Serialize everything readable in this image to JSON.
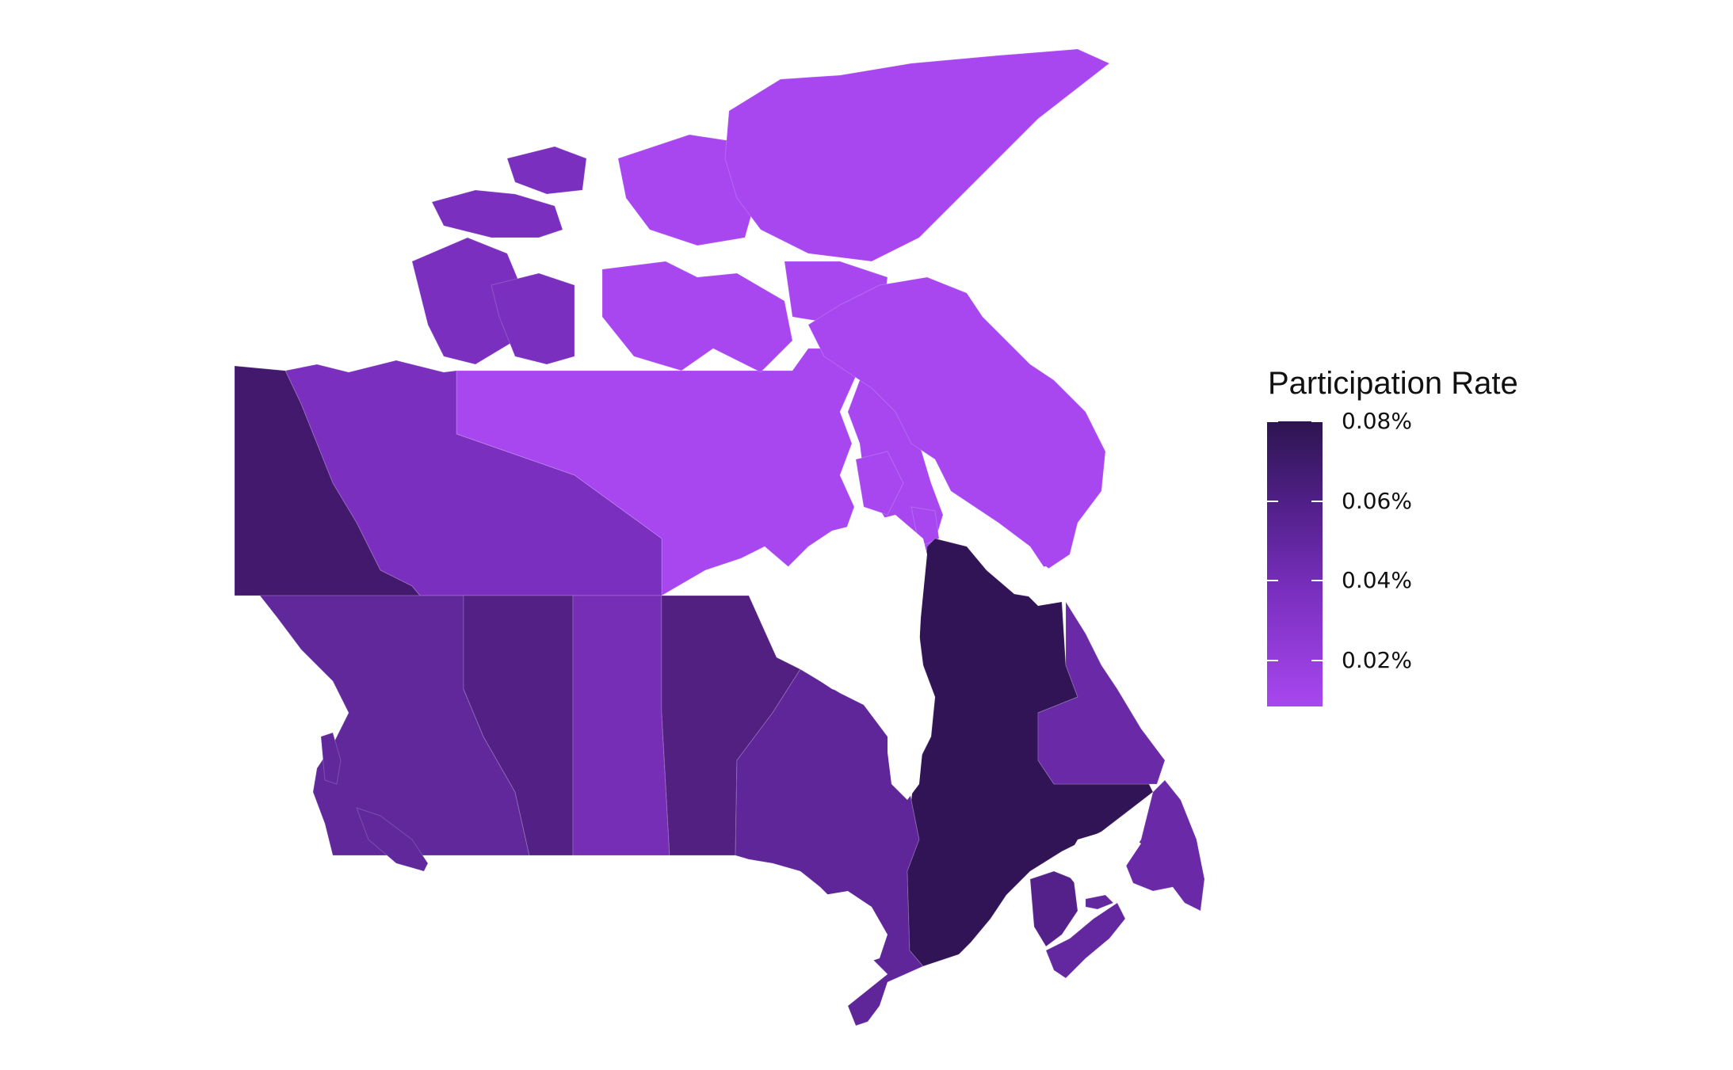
{
  "legend": {
    "title": "Participation Rate",
    "ticks": [
      {
        "label": "0.08%",
        "value": 0.08
      },
      {
        "label": "0.06%",
        "value": 0.06
      },
      {
        "label": "0.04%",
        "value": 0.04
      },
      {
        "label": "0.02%",
        "value": 0.02
      }
    ],
    "range": [
      0.0085,
      0.08
    ],
    "colors": {
      "low": "#a847f0",
      "high": "#2d1550"
    }
  },
  "regions": [
    {
      "name": "Nunavut",
      "value": 0.01,
      "color": "#a847f0"
    },
    {
      "name": "Northwest Territories",
      "value": 0.033,
      "color": "#7a2fbf"
    },
    {
      "name": "Yukon",
      "value": 0.068,
      "color": "#43196e"
    },
    {
      "name": "British Columbia",
      "value": 0.048,
      "color": "#61289c"
    },
    {
      "name": "Alberta",
      "value": 0.058,
      "color": "#532085"
    },
    {
      "name": "Saskatchewan",
      "value": 0.036,
      "color": "#772eb7"
    },
    {
      "name": "Manitoba",
      "value": 0.058,
      "color": "#522081"
    },
    {
      "name": "Ontario",
      "value": 0.049,
      "color": "#5f269a"
    },
    {
      "name": "Quebec",
      "value": 0.08,
      "color": "#311455"
    },
    {
      "name": "Newfoundland and Labrador",
      "value": 0.043,
      "color": "#6a2aa8"
    },
    {
      "name": "New Brunswick",
      "value": 0.056,
      "color": "#54218a"
    },
    {
      "name": "Nova Scotia",
      "value": 0.045,
      "color": "#6327a0"
    },
    {
      "name": "Prince Edward Island",
      "value": 0.045,
      "color": "#6327a0"
    }
  ]
}
